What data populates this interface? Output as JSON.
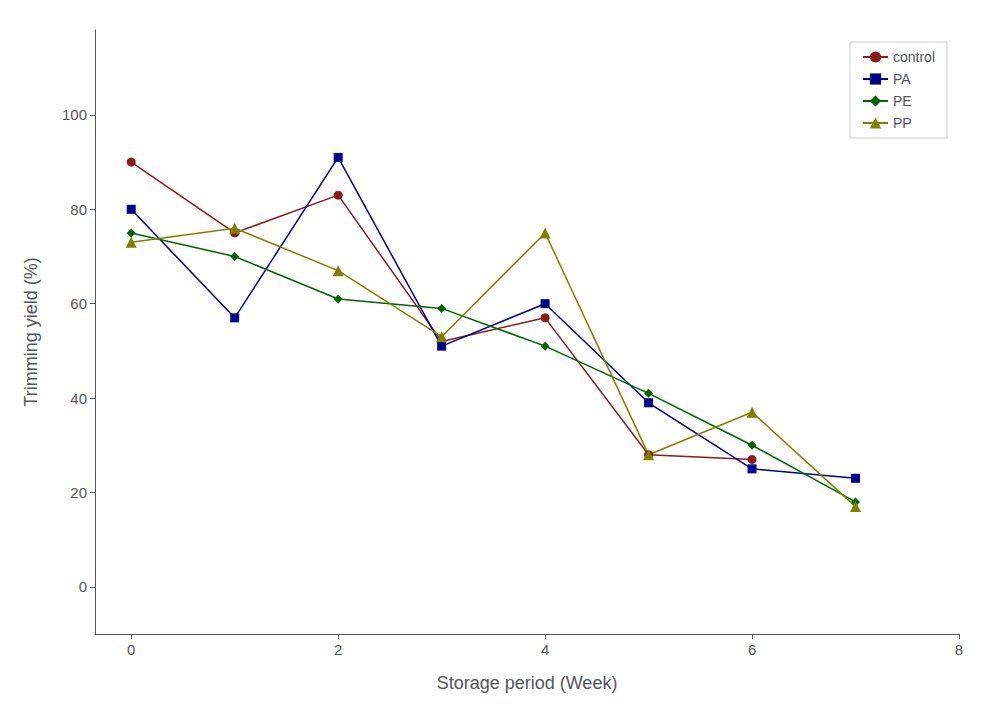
{
  "chart_data": {
    "type": "line",
    "xlabel": "Storage period (Week)",
    "ylabel": "Trimming yield (%)",
    "series": [
      {
        "name": "control",
        "color": "#8B1A1A",
        "marker": "circle",
        "x": [
          0,
          1,
          2,
          3,
          4,
          5,
          6
        ],
        "values": [
          90,
          75,
          83,
          52,
          57,
          28,
          27
        ]
      },
      {
        "name": "PA",
        "color": "#00008B",
        "marker": "square",
        "x": [
          0,
          1,
          2,
          3,
          4,
          5,
          6,
          7
        ],
        "values": [
          80,
          57,
          91,
          51,
          60,
          39,
          25,
          23
        ]
      },
      {
        "name": "PE",
        "color": "#006400",
        "marker": "diamond",
        "x": [
          0,
          1,
          2,
          3,
          4,
          5,
          6,
          7
        ],
        "values": [
          75,
          70,
          61,
          59,
          51,
          41,
          30,
          18
        ]
      },
      {
        "name": "PP",
        "color": "#808000",
        "marker": "triangle",
        "x": [
          0,
          1,
          2,
          3,
          4,
          5,
          6,
          7
        ],
        "values": [
          73,
          76,
          67,
          53,
          75,
          28,
          37,
          17
        ]
      }
    ],
    "xlim": [
      -0.35,
      8.0
    ],
    "ylim": [
      -10,
      118
    ],
    "xticks": [
      0,
      2,
      4,
      6,
      8
    ],
    "yticks": [
      0,
      20,
      40,
      60,
      80,
      100
    ],
    "grid": false,
    "legend": "upper right"
  }
}
